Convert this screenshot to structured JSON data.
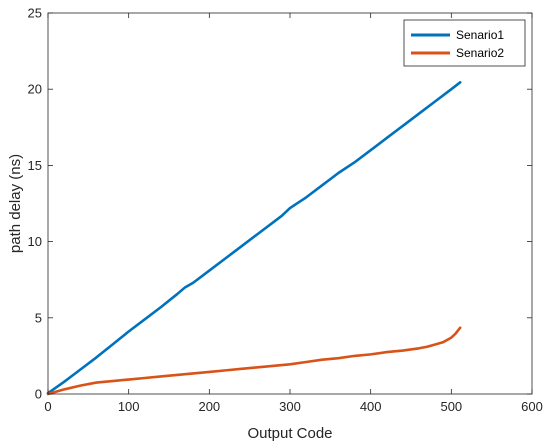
{
  "chart_data": {
    "type": "line",
    "xlabel": "Output Code",
    "ylabel": "path delay (ns)",
    "xlim": [
      0,
      600
    ],
    "ylim": [
      0,
      25
    ],
    "xticks": [
      0,
      100,
      200,
      300,
      400,
      500,
      600
    ],
    "yticks": [
      0,
      5,
      10,
      15,
      20,
      25
    ],
    "grid": false,
    "legend_position": "top-right",
    "series": [
      {
        "name": "Senario1",
        "color": "#0072BD",
        "x": [
          0,
          20,
          40,
          60,
          80,
          100,
          120,
          140,
          160,
          170,
          180,
          200,
          220,
          240,
          260,
          280,
          290,
          300,
          320,
          340,
          350,
          360,
          380,
          400,
          420,
          440,
          460,
          480,
          500,
          511
        ],
        "y": [
          0.05,
          0.8,
          1.6,
          2.4,
          3.25,
          4.1,
          4.9,
          5.7,
          6.55,
          7.0,
          7.3,
          8.1,
          8.9,
          9.7,
          10.5,
          11.3,
          11.7,
          12.2,
          12.9,
          13.7,
          14.1,
          14.5,
          15.2,
          16.0,
          16.8,
          17.6,
          18.4,
          19.2,
          20.0,
          20.45
        ]
      },
      {
        "name": "Senario2",
        "color": "#D95319",
        "x": [
          0,
          20,
          40,
          60,
          80,
          100,
          120,
          140,
          160,
          180,
          200,
          220,
          240,
          260,
          280,
          300,
          320,
          340,
          360,
          380,
          400,
          420,
          440,
          460,
          470,
          480,
          490,
          500,
          505,
          511
        ],
        "y": [
          0.0,
          0.3,
          0.55,
          0.75,
          0.85,
          0.95,
          1.05,
          1.15,
          1.25,
          1.35,
          1.45,
          1.55,
          1.65,
          1.75,
          1.85,
          1.95,
          2.1,
          2.25,
          2.35,
          2.5,
          2.6,
          2.75,
          2.85,
          3.0,
          3.1,
          3.25,
          3.4,
          3.7,
          3.95,
          4.35
        ]
      }
    ]
  }
}
